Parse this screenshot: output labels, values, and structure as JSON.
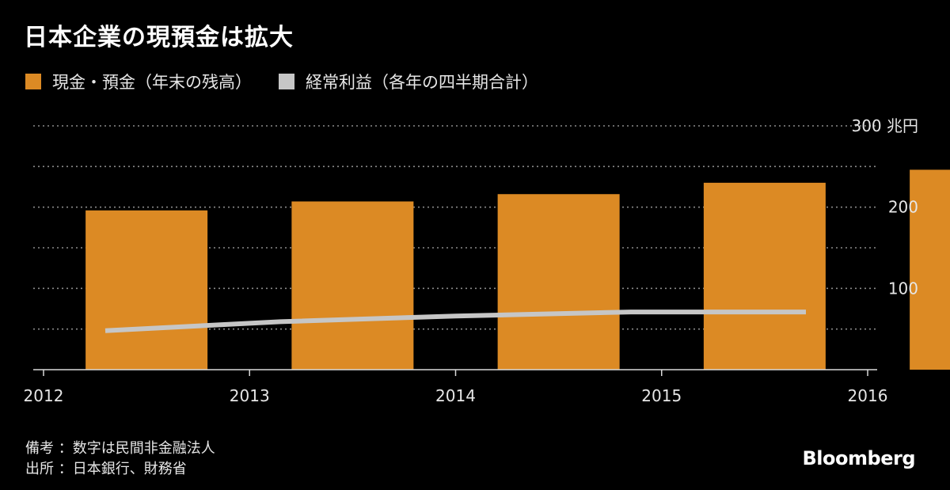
{
  "title": "日本企業の現預金は拡大",
  "legend": [
    {
      "label": "現金・預金（年末の残高）",
      "color": "#dc8a24"
    },
    {
      "label": "経常利益（各年の四半期合計）",
      "color": "#c6c6c6"
    }
  ],
  "chart_data": {
    "type": "bar",
    "title": "日本企業の現預金は拡大",
    "x_ticks": [
      "2012",
      "2013",
      "2014",
      "2015",
      "2016"
    ],
    "y_ticks": [
      {
        "value": 300,
        "label": "300 兆円"
      },
      {
        "value": 200,
        "label": "200"
      },
      {
        "value": 100,
        "label": "100"
      }
    ],
    "ylim": [
      0,
      300
    ],
    "grid": true,
    "series": [
      {
        "name": "現金・預金（年末の残高）",
        "type": "bar",
        "x": [
          2012,
          2013,
          2014,
          2015,
          2016
        ],
        "values": [
          196,
          207,
          216,
          230,
          246
        ]
      },
      {
        "name": "経常利益（各年の四半期合計）",
        "type": "line",
        "x": [
          2012,
          2013,
          2014,
          2015,
          2016
        ],
        "values": [
          48,
          59,
          66,
          71,
          71
        ]
      }
    ]
  },
  "notes": {
    "line1": "備考 ：数字は民間非金融法人",
    "line2": "出所 ：日本銀行、財務省"
  },
  "brand": "Bloomberg",
  "colors": {
    "background": "#000000",
    "bar": "#dc8a24",
    "line": "#c6c6c6",
    "grid": "#8a8a8a"
  }
}
